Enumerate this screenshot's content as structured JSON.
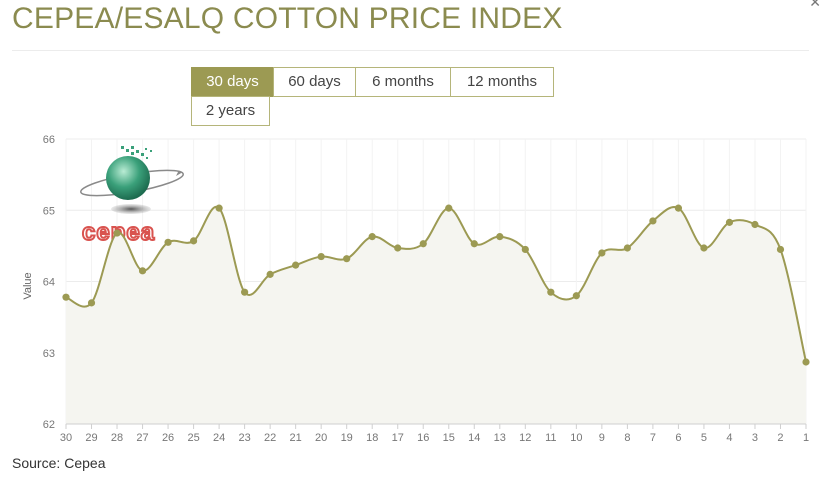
{
  "page": {
    "title": "CEPEA/ESALQ COTTON PRICE INDEX",
    "close_icon": "close-icon",
    "logo_text": "cepea"
  },
  "tabs": [
    {
      "label": "30 days",
      "active": true
    },
    {
      "label": "60 days",
      "active": false
    },
    {
      "label": "6 months",
      "active": false
    },
    {
      "label": "12 months",
      "active": false
    },
    {
      "label": "2 years",
      "active": false
    }
  ],
  "source": {
    "label": "Source:",
    "value": "Cepea"
  },
  "colors": {
    "accent": "#9c9a53",
    "line": "#9c9a53",
    "area": "#f5f5f0",
    "logo_red": "#d9534f",
    "logo_green": "#3aa07a"
  },
  "chart_data": {
    "type": "area",
    "ylabel": "Value",
    "ylim": [
      62,
      66
    ],
    "yticks": [
      62,
      63,
      64,
      65,
      66
    ],
    "grid": true,
    "categories": [
      "30",
      "29",
      "28",
      "27",
      "26",
      "25",
      "24",
      "23",
      "22",
      "21",
      "20",
      "19",
      "18",
      "17",
      "16",
      "15",
      "14",
      "13",
      "12",
      "11",
      "10",
      "9",
      "8",
      "7",
      "6",
      "5",
      "4",
      "3",
      "2",
      "1"
    ],
    "series": [
      {
        "values": [
          63.78,
          63.7,
          64.68,
          64.15,
          64.55,
          64.57,
          65.03,
          63.85,
          64.1,
          64.23,
          64.35,
          64.32,
          64.63,
          64.47,
          64.53,
          65.03,
          64.53,
          64.63,
          64.45,
          63.85,
          63.8,
          64.4,
          64.47,
          64.85,
          65.03,
          64.47,
          64.83,
          64.8,
          64.45,
          62.87
        ]
      }
    ]
  }
}
